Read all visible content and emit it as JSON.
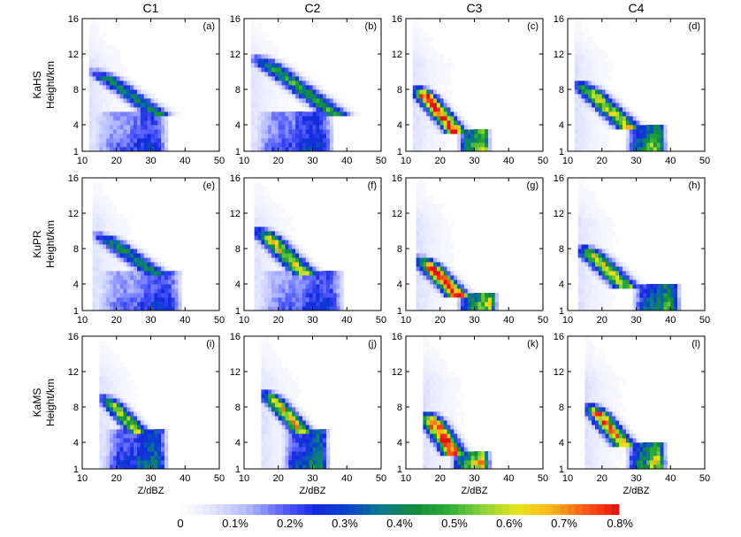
{
  "figure": {
    "column_titles": [
      "C1",
      "C2",
      "C3",
      "C4"
    ],
    "row_labels": [
      {
        "name": "KaHS",
        "unit": "Height/km"
      },
      {
        "name": "KuPR",
        "unit": "Height/km"
      },
      {
        "name": "KaMS",
        "unit": "Height/km"
      }
    ],
    "x_axis_label": "Z/dBZ"
  },
  "chart_data": {
    "type": "heatmap",
    "description_type": "CFAD",
    "xlim": [
      10,
      50
    ],
    "ylim": [
      1,
      16
    ],
    "x_ticks": [
      "10",
      "20",
      "30",
      "40",
      "50"
    ],
    "y_ticks": [
      "1",
      "4",
      "8",
      "12",
      "16"
    ],
    "xlabel": "Z/dBZ",
    "ylabel": "Height/km",
    "grid": false,
    "colorbar": {
      "placement": "bottom",
      "range": [
        0,
        0.8
      ],
      "tick_labels": [
        "0",
        "0.1%",
        "0.2%",
        "0.3%",
        "0.4%",
        "0.5%",
        "0.6%",
        "0.7%",
        "0.8%"
      ],
      "colors": [
        "#ffffff",
        "#dfe3ff",
        "#b3b8ff",
        "#5b64ff",
        "#1428e0",
        "#0a46c8",
        "#0b7a8a",
        "#138c3a",
        "#2fb036",
        "#8fd33a",
        "#e6e61a",
        "#ffb41e",
        "#ff5a14",
        "#e60e0e"
      ]
    },
    "panels": [
      {
        "label": "(a)",
        "row": "KaHS",
        "column": "C1",
        "min_z": 12,
        "peak": 0.35,
        "upper": {
          "z_start": 13,
          "base": 5.5,
          "top": 10.5,
          "slope": 3.6,
          "width": 3.6,
          "peak": 0.4
        },
        "lower": {
          "z_min": 14,
          "z_max": 34,
          "base": 1.2,
          "top": 5.5,
          "peak": 0.35
        }
      },
      {
        "label": "(b)",
        "row": "KaHS",
        "column": "C2",
        "min_z": 12,
        "peak": 0.45,
        "upper": {
          "z_start": 13,
          "base": 5.5,
          "top": 12.0,
          "slope": 3.5,
          "width": 3.8,
          "peak": 0.45
        },
        "lower": {
          "z_min": 14,
          "z_max": 35,
          "base": 1.2,
          "top": 5.5,
          "peak": 0.4
        }
      },
      {
        "label": "(c)",
        "row": "KaHS",
        "column": "C3",
        "min_z": 12,
        "peak": 0.8,
        "upper": {
          "z_start": 13,
          "base": 3.2,
          "top": 8.5,
          "slope": 2.2,
          "width": 3.0,
          "peak": 0.8
        },
        "lower": {
          "z_min": 26,
          "z_max": 34,
          "base": 1.2,
          "top": 3.2,
          "peak": 0.8
        }
      },
      {
        "label": "(d)",
        "row": "KaHS",
        "column": "C4",
        "min_z": 12,
        "peak": 0.7,
        "upper": {
          "z_start": 13,
          "base": 4.0,
          "top": 9.0,
          "slope": 2.8,
          "width": 3.5,
          "peak": 0.6
        },
        "lower": {
          "z_min": 28,
          "z_max": 38,
          "base": 1.2,
          "top": 4.0,
          "peak": 0.7
        }
      },
      {
        "label": "(e)",
        "row": "KuPR",
        "column": "C1",
        "min_z": 13,
        "peak": 0.4,
        "upper": {
          "z_start": 14,
          "base": 5.5,
          "top": 10.0,
          "slope": 3.6,
          "width": 3.8,
          "peak": 0.4
        },
        "lower": {
          "z_min": 15,
          "z_max": 38,
          "base": 1.2,
          "top": 5.5,
          "peak": 0.35
        }
      },
      {
        "label": "(f)",
        "row": "KuPR",
        "column": "C2",
        "min_z": 13,
        "peak": 0.6,
        "upper": {
          "z_start": 14,
          "base": 5.5,
          "top": 10.5,
          "slope": 2.6,
          "width": 3.5,
          "peak": 0.6
        },
        "lower": {
          "z_min": 15,
          "z_max": 38,
          "base": 1.2,
          "top": 5.5,
          "peak": 0.35
        }
      },
      {
        "label": "(g)",
        "row": "KuPR",
        "column": "C3",
        "min_z": 13,
        "peak": 0.8,
        "upper": {
          "z_start": 14,
          "base": 3.0,
          "top": 7.2,
          "slope": 2.5,
          "width": 3.2,
          "peak": 0.8
        },
        "lower": {
          "z_min": 26,
          "z_max": 36,
          "base": 1.2,
          "top": 3.0,
          "peak": 0.75
        }
      },
      {
        "label": "(h)",
        "row": "KuPR",
        "column": "C4",
        "min_z": 13,
        "peak": 0.65,
        "upper": {
          "z_start": 14,
          "base": 4.0,
          "top": 8.5,
          "slope": 2.7,
          "width": 3.6,
          "peak": 0.6
        },
        "lower": {
          "z_min": 30,
          "z_max": 42,
          "base": 1.2,
          "top": 4.0,
          "peak": 0.65
        }
      },
      {
        "label": "(i)",
        "row": "KaMS",
        "column": "C1",
        "min_z": 15,
        "peak": 0.55,
        "upper": {
          "z_start": 16,
          "base": 5.5,
          "top": 9.5,
          "slope": 2.4,
          "width": 3.0,
          "peak": 0.55
        },
        "lower": {
          "z_min": 17,
          "z_max": 34,
          "base": 1.2,
          "top": 5.5,
          "peak": 0.5
        }
      },
      {
        "label": "(j)",
        "row": "KaMS",
        "column": "C2",
        "min_z": 15,
        "peak": 0.65,
        "upper": {
          "z_start": 16,
          "base": 5.5,
          "top": 10.0,
          "slope": 2.3,
          "width": 3.0,
          "peak": 0.65
        },
        "lower": {
          "z_min": 22,
          "z_max": 34,
          "base": 1.2,
          "top": 5.5,
          "peak": 0.55
        }
      },
      {
        "label": "(k)",
        "row": "KaMS",
        "column": "C3",
        "min_z": 15,
        "peak": 0.8,
        "upper": {
          "z_start": 16,
          "base": 2.8,
          "top": 7.5,
          "slope": 1.7,
          "width": 3.2,
          "peak": 0.8
        },
        "lower": {
          "z_min": 24,
          "z_max": 34,
          "base": 1.2,
          "top": 2.8,
          "peak": 0.8
        }
      },
      {
        "label": "(l)",
        "row": "KaMS",
        "column": "C4",
        "min_z": 15,
        "peak": 0.75,
        "upper": {
          "z_start": 16,
          "base": 4.0,
          "top": 8.5,
          "slope": 2.2,
          "width": 3.2,
          "peak": 0.7
        },
        "lower": {
          "z_min": 28,
          "z_max": 38,
          "base": 1.2,
          "top": 4.0,
          "peak": 0.75
        }
      }
    ]
  }
}
